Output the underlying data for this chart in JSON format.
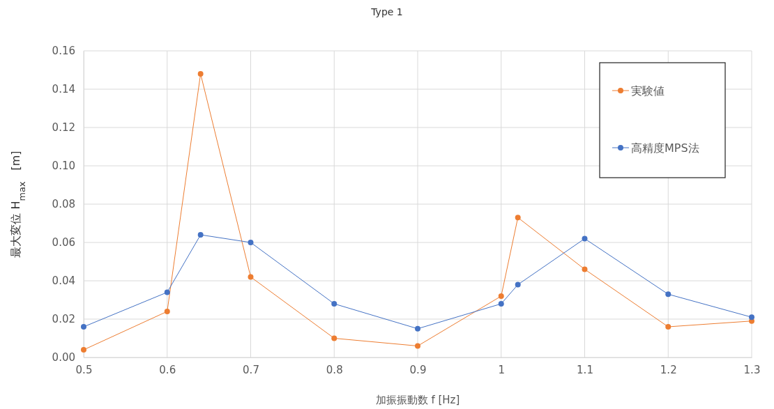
{
  "chart_data": {
    "type": "line",
    "title": "Type 1",
    "xlabel": "加振振動数 f [Hz]",
    "ylabel": "最大変位 H$_{max}$　[m]",
    "x": [
      0.5,
      0.6,
      0.64,
      0.7,
      0.8,
      0.9,
      1.0,
      1.02,
      1.1,
      1.2,
      1.3
    ],
    "series": [
      {
        "name": "実験値",
        "color": "#ed7d31",
        "values": [
          0.004,
          0.024,
          0.148,
          0.042,
          0.01,
          0.006,
          0.032,
          0.073,
          0.046,
          0.016,
          0.019
        ]
      },
      {
        "name": "高精度MPS法",
        "color": "#4472c4",
        "values": [
          0.016,
          0.034,
          0.064,
          0.06,
          0.028,
          0.015,
          0.028,
          0.038,
          0.062,
          0.033,
          0.021
        ]
      }
    ],
    "xlim": [
      0.5,
      1.3
    ],
    "xticks": [
      0.5,
      0.6,
      0.7,
      0.8,
      0.9,
      1,
      1.1,
      1.2,
      1.3
    ],
    "ylim": [
      0,
      0.16
    ],
    "yticks": [
      {
        "value": 0,
        "label": "0.00"
      },
      {
        "value": 0.02,
        "label": "0.02"
      },
      {
        "value": 0.04,
        "label": "0.04"
      },
      {
        "value": 0.06,
        "label": "0.06"
      },
      {
        "value": 0.08,
        "label": "0.08"
      },
      {
        "value": 0.1,
        "label": "0.10"
      },
      {
        "value": 0.12,
        "label": "0.12"
      },
      {
        "value": 0.14,
        "label": "0.14"
      },
      {
        "value": 0.16,
        "label": "0.16"
      }
    ],
    "grid": true,
    "legend": "top right",
    "marker": "circle",
    "line_style": "solid"
  }
}
